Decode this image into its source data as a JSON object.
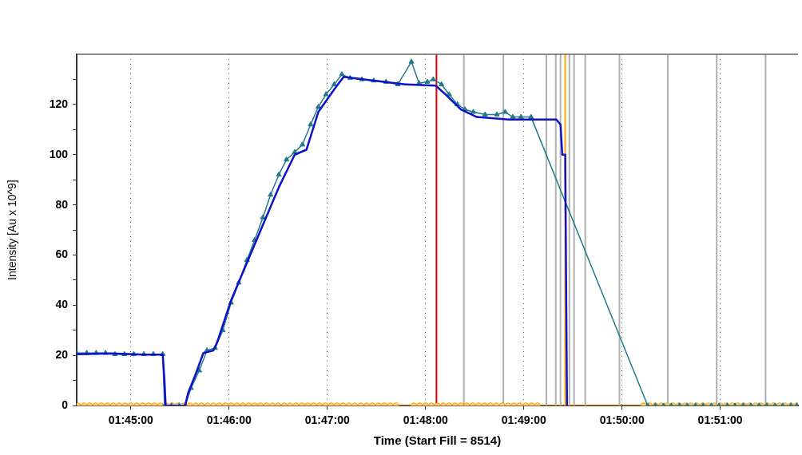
{
  "chart_data": {
    "type": "line",
    "xlabel": "Time (Start Fill = 8514)",
    "ylabel": "Intensity [Au x 10^9]",
    "xlim": [
      1.7408,
      1.8632
    ],
    "ylim": [
      0,
      140
    ],
    "xticks": [
      {
        "value": 1.75,
        "label": "01:45:00"
      },
      {
        "value": 1.766667,
        "label": "01:46:00"
      },
      {
        "value": 1.783333,
        "label": "01:47:00"
      },
      {
        "value": 1.8,
        "label": "01:48:00"
      },
      {
        "value": 1.816667,
        "label": "01:49:00"
      },
      {
        "value": 1.833333,
        "label": "01:50:00"
      },
      {
        "value": 1.85,
        "label": "01:51:00"
      }
    ],
    "yticks": [
      0,
      {
        "value": 10,
        "label": null
      },
      20,
      {
        "value": 30,
        "label": null
      },
      40,
      {
        "value": 50,
        "label": null
      },
      60,
      {
        "value": 70,
        "label": null
      },
      80,
      {
        "value": 90,
        "label": null
      },
      100,
      {
        "value": 110,
        "label": null
      },
      120,
      {
        "value": 130,
        "label": null
      }
    ],
    "grid": "x",
    "series": [
      {
        "color": "#ff9900",
        "marker": "circle",
        "x": [
          1.741,
          1.742,
          1.743,
          1.744,
          1.745,
          1.746,
          1.747,
          1.748,
          1.749,
          1.75,
          1.751,
          1.752,
          1.753,
          1.754,
          1.755,
          1.756,
          1.757,
          1.758,
          1.759,
          1.76,
          1.761,
          1.762,
          1.763,
          1.764,
          1.765,
          1.766,
          1.767,
          1.768,
          1.769,
          1.77,
          1.771,
          1.772,
          1.773,
          1.774,
          1.775,
          1.776,
          1.777,
          1.778,
          1.779,
          1.78,
          1.781,
          1.782,
          1.783,
          1.784,
          1.785,
          1.786,
          1.787,
          1.788,
          1.789,
          1.79,
          1.791,
          1.792,
          1.793,
          1.794,
          1.795,
          1.798,
          1.799,
          1.8,
          1.801,
          1.802,
          1.803,
          1.804,
          1.805,
          1.806,
          1.807,
          1.808,
          1.809,
          1.81,
          1.811,
          1.812,
          1.813,
          1.814,
          1.815,
          1.816,
          1.817,
          1.818,
          1.819,
          1.837,
          1.838,
          1.839,
          1.84,
          1.841,
          1.842,
          1.843,
          1.844,
          1.845,
          1.846,
          1.847,
          1.848,
          1.849,
          1.85,
          1.851,
          1.852,
          1.853,
          1.854,
          1.855,
          1.856,
          1.857,
          1.858,
          1.859,
          1.86,
          1.861,
          1.862,
          1.863
        ],
        "values": [
          0,
          0,
          0,
          0,
          0,
          0,
          0,
          0,
          0,
          0,
          0,
          0,
          0,
          0,
          0,
          0,
          0,
          0,
          0,
          0,
          0,
          0,
          0,
          0,
          0,
          0,
          0,
          0,
          0,
          0,
          0,
          0,
          0,
          0,
          0,
          0,
          0,
          0,
          0,
          0,
          0,
          0,
          0,
          0,
          0,
          0,
          0,
          0,
          0,
          0,
          0,
          0,
          0,
          0,
          0,
          0,
          0,
          0,
          0,
          0,
          0,
          0,
          0,
          0,
          0,
          0,
          0,
          0,
          0,
          0,
          0,
          0,
          0,
          0,
          0,
          0,
          0,
          0,
          0,
          0,
          0,
          0,
          0,
          0,
          0,
          0,
          0,
          0,
          0,
          0,
          0,
          0,
          0,
          0,
          0,
          0,
          0,
          0,
          0,
          0,
          0,
          0,
          0,
          0
        ]
      },
      {
        "color": "#1f7a8c",
        "marker": "triangle",
        "x": [
          1.7408,
          1.7425,
          1.7441,
          1.7457,
          1.7473,
          1.7489,
          1.7505,
          1.7522,
          1.7538,
          1.7554,
          1.7557,
          1.7569,
          1.7582,
          1.7592,
          1.7602,
          1.7616,
          1.7629,
          1.7643,
          1.7656,
          1.767,
          1.7683,
          1.7697,
          1.771,
          1.7724,
          1.7737,
          1.7751,
          1.7764,
          1.7778,
          1.7791,
          1.7805,
          1.7818,
          1.7831,
          1.7845,
          1.7858,
          1.7872,
          1.7892,
          1.7912,
          1.7933,
          1.7953,
          1.7976,
          1.7989,
          1.8003,
          1.8013,
          1.8027,
          1.804,
          1.8054,
          1.8067,
          1.8081,
          1.8101,
          1.8121,
          1.8135,
          1.8148,
          1.8162,
          1.8179,
          1.8377,
          1.839,
          1.8404,
          1.8417,
          1.8431,
          1.8444,
          1.8458,
          1.8471,
          1.8485,
          1.8498,
          1.8512,
          1.8525,
          1.8539,
          1.8552,
          1.8566,
          1.8579,
          1.8593,
          1.8606,
          1.862,
          1.863
        ],
        "values": [
          21,
          21,
          21,
          21,
          20.5,
          20.5,
          20.5,
          20.5,
          20.5,
          20.5,
          0,
          0,
          0,
          0,
          7,
          14,
          22,
          23,
          30,
          41,
          49,
          58,
          66,
          75,
          84,
          92,
          98,
          101,
          104,
          112,
          119,
          124,
          128,
          132,
          130.5,
          130,
          129.5,
          129,
          128,
          137,
          128.5,
          129,
          130,
          128,
          124,
          120,
          118,
          117,
          116,
          116,
          117,
          115,
          115,
          115,
          0,
          0,
          0,
          0,
          0,
          0,
          0,
          0,
          0,
          0,
          0,
          0,
          0,
          0,
          0,
          0,
          0,
          0,
          0,
          0
        ]
      },
      {
        "color": "#1010c8",
        "marker": "none",
        "x": [
          1.7408,
          1.7468,
          1.7522,
          1.7554,
          1.7557,
          1.7559,
          1.7592,
          1.7597,
          1.7609,
          1.7623,
          1.764,
          1.7646,
          1.767,
          1.7697,
          1.7724,
          1.7751,
          1.7778,
          1.7798,
          1.7818,
          1.7845,
          1.7861,
          1.7912,
          1.7966,
          1.8017,
          1.8034,
          1.806,
          1.8087,
          1.8141,
          1.8222,
          1.8229,
          1.8232,
          1.8237,
          1.824
        ],
        "values": [
          20.5,
          20.8,
          20.3,
          20.3,
          10,
          0,
          0,
          5,
          12,
          21,
          22,
          25,
          42,
          57,
          72,
          87,
          100,
          102,
          117,
          126,
          131,
          129.5,
          128,
          127.5,
          124,
          118,
          115,
          114,
          114,
          112,
          100,
          100,
          0
        ]
      }
    ],
    "ref_lines": [
      {
        "axis": "x",
        "value": 1.8065,
        "color": "#b0b0b0"
      },
      {
        "axis": "x",
        "value": 1.8132,
        "color": "#b0b0b0"
      },
      {
        "axis": "x",
        "value": 1.8205,
        "color": "#b0b0b0"
      },
      {
        "axis": "x",
        "value": 1.8221,
        "color": "#b0b0b0"
      },
      {
        "axis": "x",
        "value": 1.8229,
        "color": "#b0b0b0"
      },
      {
        "axis": "x",
        "value": 1.8244,
        "color": "#b0b0b0"
      },
      {
        "axis": "x",
        "value": 1.8252,
        "color": "#b0b0b0"
      },
      {
        "axis": "x",
        "value": 1.8271,
        "color": "#b0b0b0"
      },
      {
        "axis": "x",
        "value": 1.8329,
        "color": "#b0b0b0"
      },
      {
        "axis": "x",
        "value": 1.8411,
        "color": "#b0b0b0"
      },
      {
        "axis": "x",
        "value": 1.8494,
        "color": "#b0b0b0"
      },
      {
        "axis": "x",
        "value": 1.8577,
        "color": "#b0b0b0"
      },
      {
        "axis": "x",
        "value": 1.80185,
        "color": "#e00000"
      },
      {
        "axis": "x",
        "value": 1.8237,
        "color": "#ffaa00"
      }
    ]
  }
}
